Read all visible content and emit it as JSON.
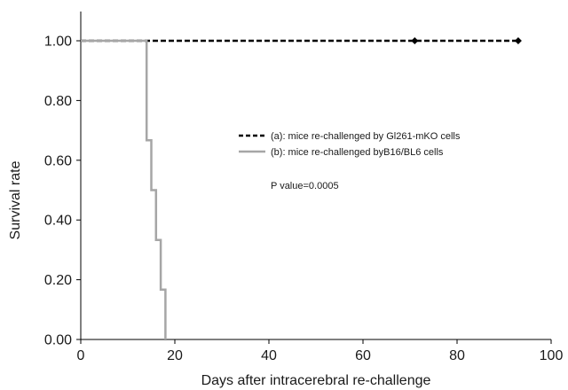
{
  "chart_data": {
    "type": "line",
    "xlabel": "Days after intracerebral re-challenge",
    "ylabel": "Survival rate",
    "xlim": [
      0,
      100
    ],
    "ylim": [
      0,
      1.0
    ],
    "x_ticks": [
      0,
      20,
      40,
      60,
      80,
      100
    ],
    "x_tick_labels": [
      "0",
      "20",
      "40",
      "60",
      "80",
      "100"
    ],
    "y_ticks": [
      0,
      0.2,
      0.4,
      0.6,
      0.8,
      1.0
    ],
    "y_tick_labels": [
      "0.00",
      "0.20",
      "0.40",
      "0.60",
      "0.80",
      "1.00"
    ],
    "grid": false,
    "legend_position": "center-right",
    "series": [
      {
        "name": "(a): mice re-challenged by Gl261-mKO cells",
        "style": "dashed",
        "color": "#000000",
        "x": [
          0,
          93
        ],
        "y": [
          1.0,
          1.0
        ],
        "censor_marks": [
          {
            "x": 71,
            "y": 1.0
          },
          {
            "x": 93,
            "y": 1.0
          }
        ]
      },
      {
        "name": "(b): mice re-challenged byB16/BL6 cells",
        "style": "step",
        "color": "#a6a6a6",
        "x": [
          0,
          14,
          15,
          16,
          17,
          18
        ],
        "y": [
          1.0,
          0.667,
          0.5,
          0.333,
          0.167,
          0.0
        ]
      }
    ],
    "annotations": [
      "P value=0.0005"
    ]
  }
}
